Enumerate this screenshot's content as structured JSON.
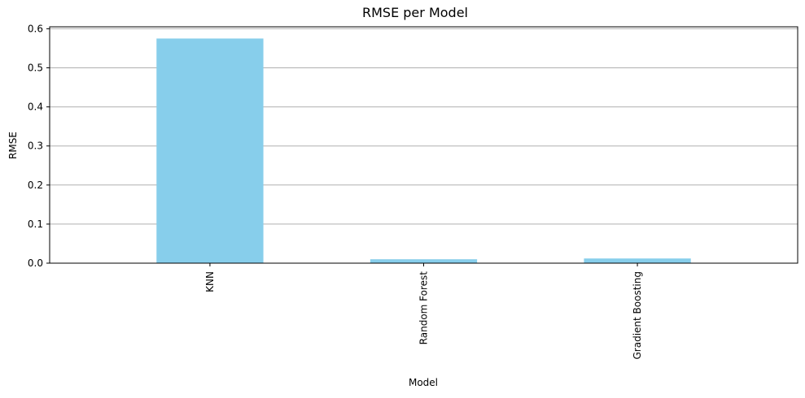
{
  "chart_data": {
    "type": "bar",
    "title": "RMSE per Model",
    "xlabel": "Model",
    "ylabel": "RMSE",
    "categories": [
      "KNN",
      "Random Forest",
      "Gradient Boosting"
    ],
    "values": [
      0.575,
      0.01,
      0.012
    ],
    "ylim": [
      0,
      0.605
    ],
    "yticks": [
      "0.0",
      "0.1",
      "0.2",
      "0.3",
      "0.4",
      "0.5",
      "0.6"
    ],
    "ytick_values": [
      0,
      0.1,
      0.2,
      0.3,
      0.4,
      0.5,
      0.6
    ],
    "grid": "y-axis",
    "legend": "none",
    "bar_color": "#87ceeb"
  }
}
